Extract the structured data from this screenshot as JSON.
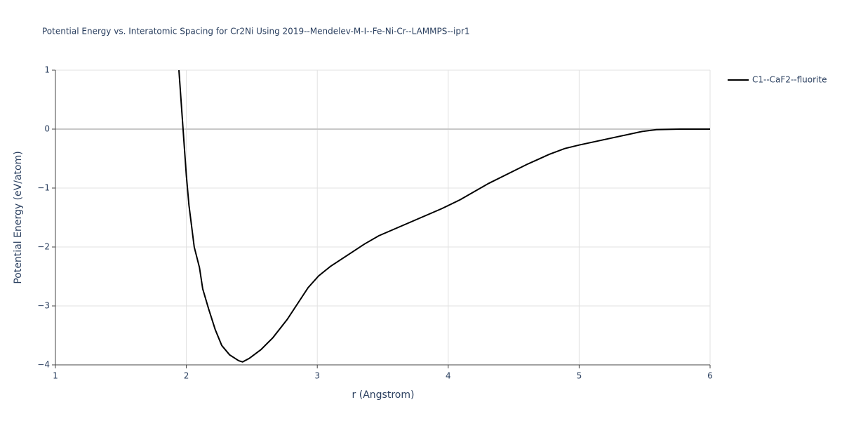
{
  "chart_data": {
    "type": "line",
    "title": "Potential Energy vs. Interatomic Spacing for Cr2Ni Using 2019--Mendelev-M-I--Fe-Ni-Cr--LAMMPS--ipr1",
    "x_label": "r (Angstrom)",
    "y_label": "Potential Energy (eV/atom)",
    "x": [
      1.943,
      1.975,
      2.0,
      2.02,
      2.06,
      2.1,
      2.125,
      2.17,
      2.22,
      2.27,
      2.33,
      2.4,
      2.43,
      2.48,
      2.57,
      2.66,
      2.77,
      2.93,
      3.01,
      3.1,
      3.36,
      3.47,
      3.95,
      4.09,
      4.31,
      4.6,
      4.77,
      4.89,
      5.0,
      5.48,
      5.59,
      5.77,
      6.0
    ],
    "series": [
      {
        "name": "C1--CaF2--fluorite",
        "color": "#000000",
        "values": [
          1.0,
          0.0,
          -0.79,
          -1.29,
          -2.0,
          -2.35,
          -2.71,
          -3.05,
          -3.4,
          -3.67,
          -3.83,
          -3.93,
          -3.95,
          -3.89,
          -3.74,
          -3.54,
          -3.23,
          -2.69,
          -2.49,
          -2.33,
          -1.95,
          -1.81,
          -1.35,
          -1.2,
          -0.92,
          -0.6,
          -0.43,
          -0.33,
          -0.27,
          -0.04,
          -0.01,
          0.0,
          0.0
        ]
      }
    ],
    "xlim": [
      1,
      6
    ],
    "ylim": [
      -4,
      1
    ],
    "xticks": [
      1,
      2,
      3,
      4,
      5,
      6
    ],
    "yticks": [
      {
        "value": -4,
        "label": "−4"
      },
      {
        "value": -3,
        "label": "−3"
      },
      {
        "value": -2,
        "label": "−2"
      },
      {
        "value": -1,
        "label": "−1"
      },
      0,
      1
    ],
    "grid": true,
    "legend": "right"
  }
}
